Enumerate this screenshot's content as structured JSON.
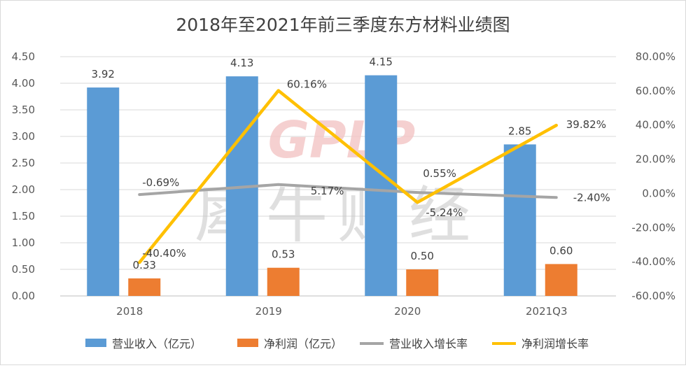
{
  "chart_data": {
    "type": "bar",
    "title": "2018年至2021年前三季度东方材料业绩图",
    "categories": [
      "2018",
      "2019",
      "2020",
      "2021Q3"
    ],
    "series": [
      {
        "name": "营业收入（亿元）",
        "kind": "bar",
        "axis": "left",
        "color": "#5b9bd5",
        "values": [
          3.92,
          4.13,
          4.15,
          2.85
        ],
        "labels": [
          "3.92",
          "4.13",
          "4.15",
          "2.85"
        ]
      },
      {
        "name": "净利润（亿元）",
        "kind": "bar",
        "axis": "left",
        "color": "#ed7d31",
        "values": [
          0.33,
          0.53,
          0.5,
          0.6
        ],
        "labels": [
          "0.33",
          "0.53",
          "0.50",
          "0.60"
        ]
      },
      {
        "name": "营业收入增长率",
        "kind": "line",
        "axis": "right",
        "color": "#a5a5a5",
        "values": [
          -0.69,
          5.17,
          0.55,
          -2.4
        ],
        "labels": [
          "-0.69%",
          "5.17%",
          "0.55%",
          "-2.40%"
        ]
      },
      {
        "name": "净利润增长率",
        "kind": "line",
        "axis": "right",
        "color": "#ffc000",
        "values": [
          -40.4,
          60.16,
          -5.24,
          39.82
        ],
        "labels": [
          "-40.40%",
          "60.16%",
          "-5.24%",
          "39.82%"
        ]
      }
    ],
    "y_left": {
      "range": [
        0,
        4.5
      ],
      "ticks": [
        "0.00",
        "0.50",
        "1.00",
        "1.50",
        "2.00",
        "2.50",
        "3.00",
        "3.50",
        "4.00",
        "4.50"
      ]
    },
    "y_right": {
      "range": [
        -60,
        80
      ],
      "ticks": [
        "-60.00%",
        "-40.00%",
        "-20.00%",
        "0.00%",
        "20.00%",
        "40.00%",
        "60.00%",
        "80.00%"
      ]
    },
    "grid": true,
    "legend": "bottom",
    "watermark": {
      "latin": "GPLP",
      "chinese": "犀牛财经"
    }
  }
}
